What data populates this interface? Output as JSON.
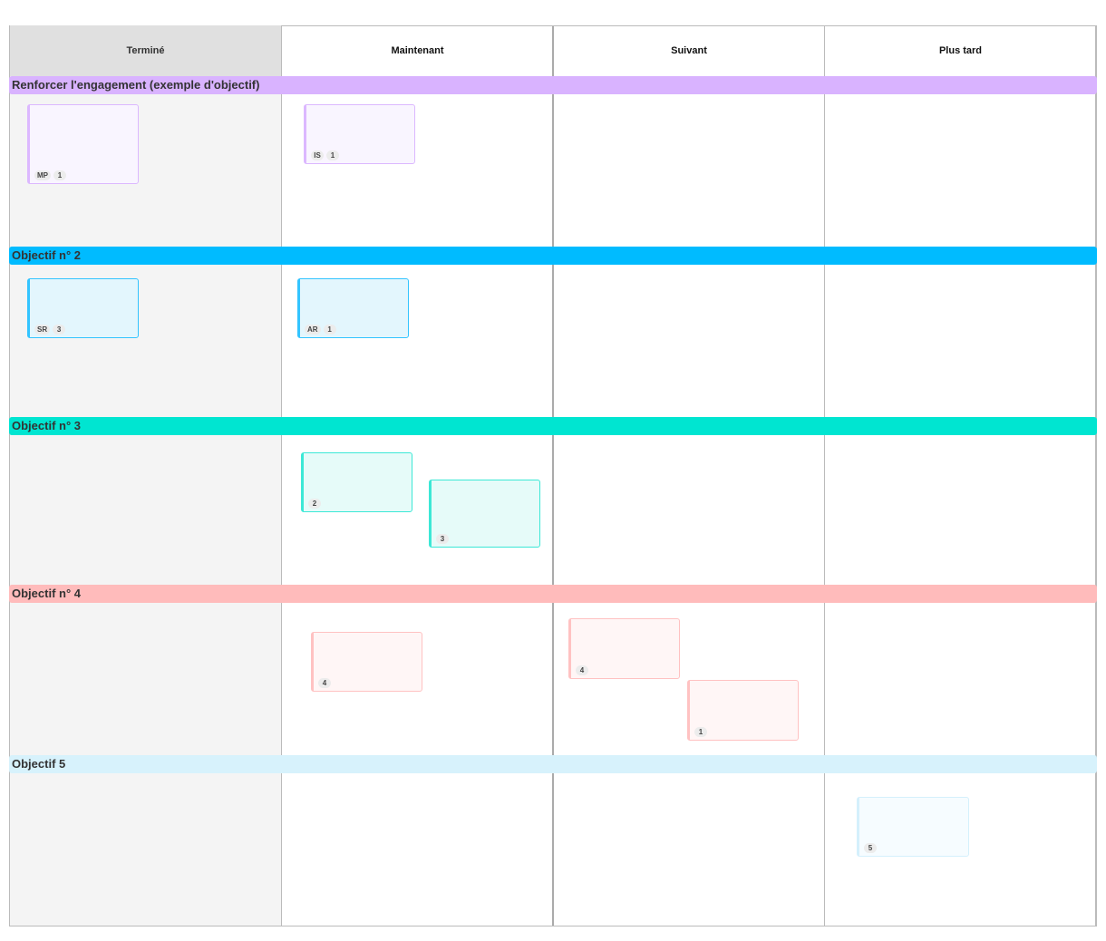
{
  "columns": [
    {
      "label": "Terminé"
    },
    {
      "label": "Maintenant"
    },
    {
      "label": "Suivant"
    },
    {
      "label": "Plus tard"
    }
  ],
  "lanes": [
    {
      "label": "Renforcer l'engagement (exemple d'objectif)",
      "color": "#d9b3ff",
      "card_bg": "#f9f5ff",
      "card_border": "#dcb8ff"
    },
    {
      "label": "Objectif n° 2",
      "color": "#00bbff",
      "card_bg": "#e3f6fd",
      "card_border": "#33c4ff"
    },
    {
      "label": "Objectif n° 3",
      "color": "#00e5d1",
      "card_bg": "#e6fbf9",
      "card_border": "#3ce8d6"
    },
    {
      "label": "Objectif n° 4",
      "color": "#ffbbbb",
      "card_bg": "#fff6f6",
      "card_border": "#ffc2c2"
    },
    {
      "label": "Objectif 5",
      "color": "#d7f2fc",
      "card_bg": "#f6fcff",
      "card_border": "#d4f0fc"
    }
  ],
  "cards": [
    {
      "lane": 0,
      "column": "Terminé",
      "tags": [
        "MP",
        "1"
      ]
    },
    {
      "lane": 0,
      "column": "Maintenant",
      "tags": [
        "IS",
        "1"
      ]
    },
    {
      "lane": 1,
      "column": "Terminé",
      "tags": [
        "SR",
        "3"
      ]
    },
    {
      "lane": 1,
      "column": "Maintenant",
      "tags": [
        "AR",
        "1"
      ]
    },
    {
      "lane": 2,
      "column": "Maintenant",
      "tags": [
        "2"
      ]
    },
    {
      "lane": 2,
      "column": "Maintenant",
      "tags": [
        "3"
      ]
    },
    {
      "lane": 3,
      "column": "Maintenant",
      "tags": [
        "4"
      ]
    },
    {
      "lane": 3,
      "column": "Suivant",
      "tags": [
        "4"
      ]
    },
    {
      "lane": 3,
      "column": "Suivant",
      "tags": [
        "1"
      ]
    },
    {
      "lane": 4,
      "column": "Plus tard",
      "tags": [
        "5"
      ]
    }
  ]
}
